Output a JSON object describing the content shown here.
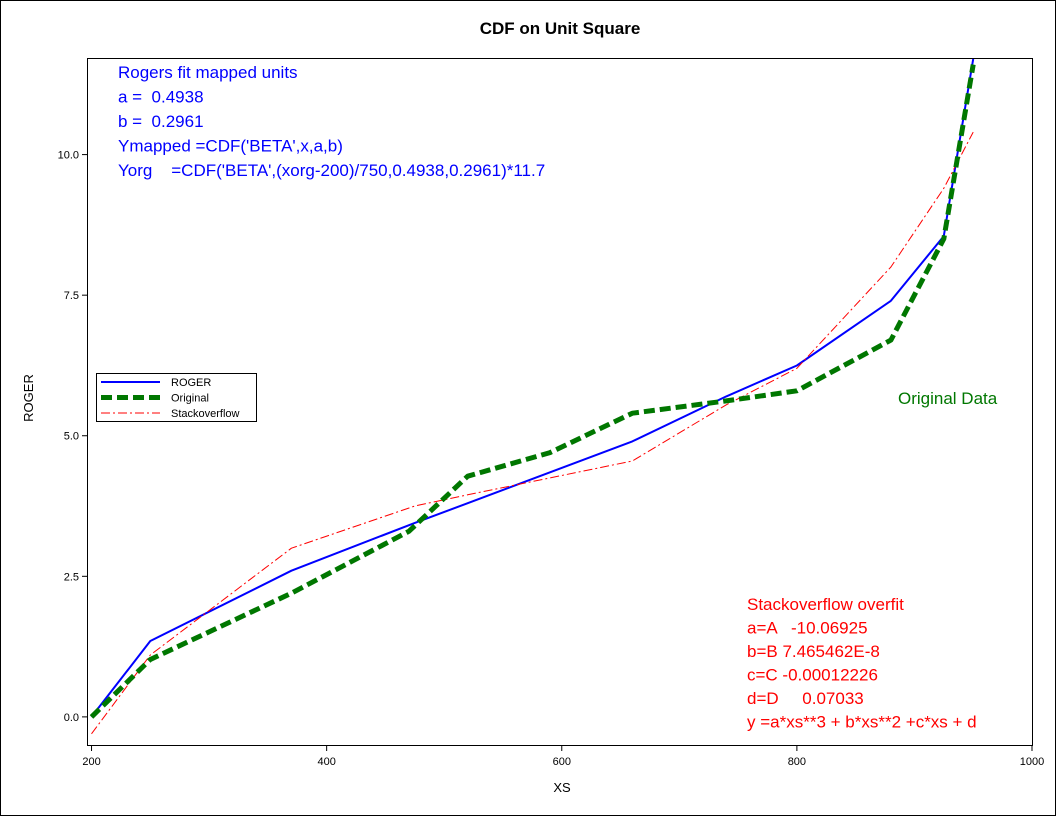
{
  "chart_data": {
    "type": "line",
    "title": "CDF on Unit Square",
    "xlabel": "XS",
    "ylabel": "ROGER",
    "xlim": [
      197,
      1000
    ],
    "ylim": [
      -0.5,
      11.7
    ],
    "x_ticks": [
      200,
      400,
      600,
      800,
      1000
    ],
    "x_tick_labels": [
      "200",
      "400",
      "600",
      "800",
      "1000"
    ],
    "y_ticks": [
      0,
      2.5,
      5,
      7.5,
      10
    ],
    "y_tick_labels": [
      "0.0",
      "2.5",
      "5.0",
      "7.5",
      "10.0"
    ],
    "grid": false,
    "legend_position": "left-middle",
    "series": [
      {
        "name": "ROGER",
        "color": "#0000ff",
        "style": "solid",
        "x": [
          200,
          250,
          370,
          475,
          520,
          590,
          660,
          740,
          800,
          880,
          925,
          950
        ],
        "y": [
          0.0,
          1.35,
          2.6,
          3.45,
          3.8,
          4.35,
          4.9,
          5.7,
          6.25,
          7.4,
          8.55,
          11.7
        ]
      },
      {
        "name": "Original",
        "color": "#007700",
        "style": "thick-dashed",
        "x": [
          200,
          250,
          370,
          470,
          520,
          590,
          660,
          740,
          800,
          880,
          925,
          950
        ],
        "y": [
          0.0,
          1.02,
          2.2,
          3.3,
          4.28,
          4.7,
          5.4,
          5.62,
          5.8,
          6.7,
          8.5,
          11.6
        ]
      },
      {
        "name": "Stackoverflow",
        "color": "#ff0000",
        "style": "dash-dot",
        "x": [
          200,
          250,
          370,
          475,
          520,
          590,
          660,
          740,
          800,
          880,
          925,
          950
        ],
        "y": [
          -0.3,
          1.1,
          3.0,
          3.75,
          3.95,
          4.25,
          4.55,
          5.55,
          6.2,
          8.0,
          9.4,
          10.4
        ]
      }
    ],
    "annotations": {
      "rogers": {
        "color": "#0000ff",
        "lines": [
          "Rogers fit mapped units",
          "a =  0.4938",
          "b =  0.2961",
          "Ymapped =CDF('BETA',x,a,b)",
          "Yorg    =CDF('BETA',(xorg-200)/750,0.4938,0.2961)*11.7"
        ]
      },
      "original": {
        "color": "#007700",
        "text": "Original Data"
      },
      "stackoverflow": {
        "color": "#ff0000",
        "lines": [
          "Stackoverflow overfit",
          "a=A   -10.06925",
          "b=B 7.465462E-8",
          "c=C -0.00012226",
          "d=D     0.07033",
          "y =a*xs**3 + b*xs**2 +c*xs + d"
        ]
      }
    }
  }
}
